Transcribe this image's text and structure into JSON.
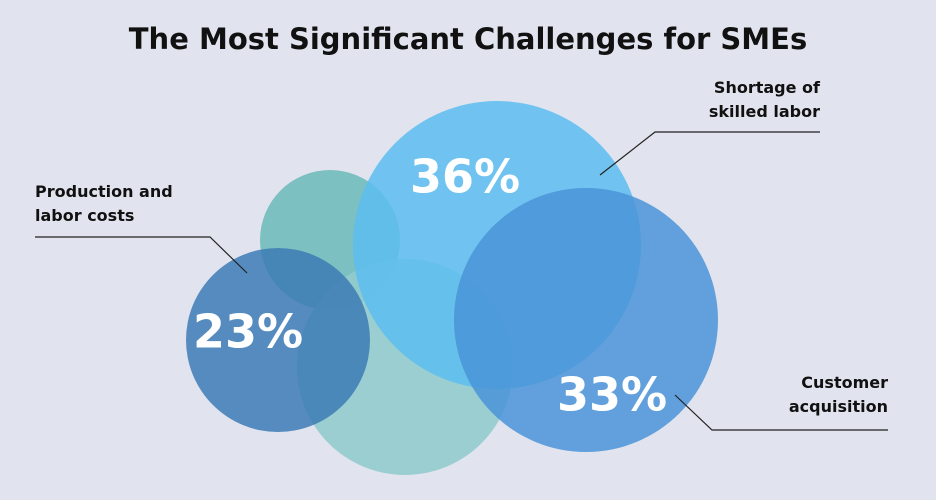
{
  "chart_data": {
    "type": "bubble",
    "title": "The Most Significant Challenges for SMEs",
    "categories": [
      "Shortage of skilled labor",
      "Customer acquisition",
      "Production and labor costs"
    ],
    "values": [
      36,
      33,
      23
    ],
    "value_labels": [
      "36%",
      "33%",
      "23%"
    ],
    "colors": [
      "#5cbdf0",
      "#4a94d8",
      "#3c7bb5"
    ]
  }
}
